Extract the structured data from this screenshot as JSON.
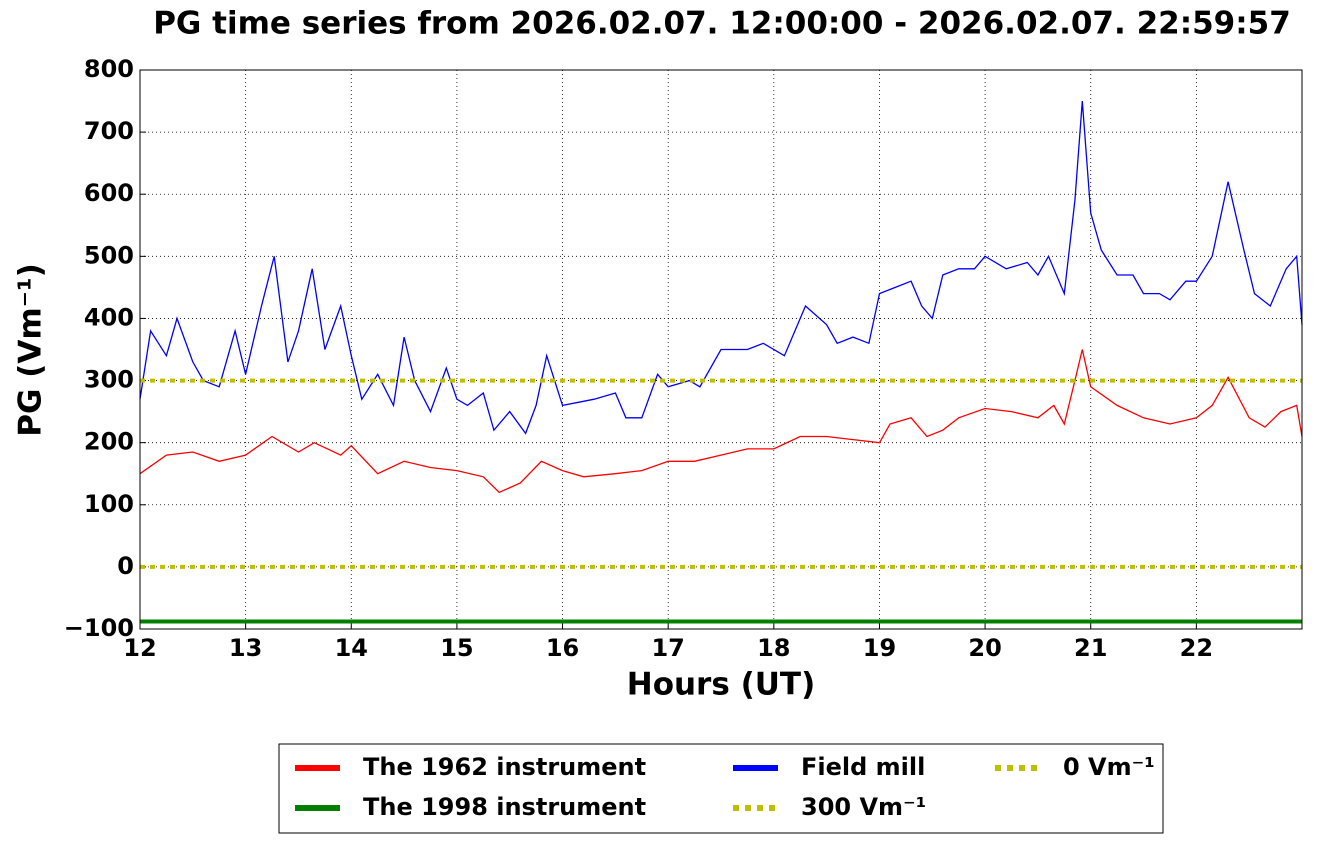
{
  "chart_data": {
    "type": "line",
    "title": "PG time series from 2026.02.07. 12:00:00 - 2026.02.07. 22:59:57",
    "x_label": "Hours (UT)",
    "y_label": "PG (Vm⁻¹)",
    "xlim": [
      12,
      23
    ],
    "ylim": [
      -100,
      800
    ],
    "xticks": [
      12,
      13,
      14,
      15,
      16,
      17,
      18,
      19,
      20,
      21,
      22
    ],
    "yticks": [
      {
        "value": -100,
        "label": "−100"
      },
      0,
      100,
      200,
      300,
      400,
      500,
      600,
      700,
      800
    ],
    "grid": true,
    "legend": "below",
    "series": [
      {
        "name": "The 1962 instrument",
        "color": "#ff0000",
        "linestyle": "solid",
        "x": [
          12.0,
          12.25,
          12.5,
          12.75,
          13.0,
          13.25,
          13.5,
          13.65,
          13.9,
          14.0,
          14.25,
          14.5,
          14.75,
          15.0,
          15.25,
          15.4,
          15.6,
          15.8,
          16.0,
          16.2,
          16.5,
          16.75,
          17.0,
          17.25,
          17.5,
          17.75,
          18.0,
          18.25,
          18.5,
          18.75,
          19.0,
          19.1,
          19.3,
          19.45,
          19.6,
          19.75,
          20.0,
          20.25,
          20.5,
          20.65,
          20.75,
          20.85,
          20.92,
          21.0,
          21.25,
          21.5,
          21.75,
          22.0,
          22.15,
          22.3,
          22.5,
          22.65,
          22.8,
          22.95,
          23.0
        ],
        "values": [
          150,
          180,
          185,
          170,
          180,
          210,
          185,
          200,
          180,
          195,
          150,
          170,
          160,
          155,
          145,
          120,
          135,
          170,
          155,
          145,
          150,
          155,
          170,
          170,
          180,
          190,
          190,
          210,
          210,
          205,
          200,
          230,
          240,
          210,
          220,
          240,
          255,
          250,
          240,
          260,
          230,
          300,
          350,
          290,
          260,
          240,
          230,
          240,
          260,
          305,
          240,
          225,
          250,
          260,
          210
        ]
      },
      {
        "name": "The 1998 instrument",
        "color": "#008000",
        "linestyle": "solid",
        "x": [
          12,
          23
        ],
        "values": [
          -88,
          -88
        ]
      },
      {
        "name": "Field mill",
        "color": "#0000ff",
        "linestyle": "solid",
        "x": [
          12.0,
          12.1,
          12.25,
          12.35,
          12.5,
          12.6,
          12.75,
          12.9,
          13.0,
          13.15,
          13.27,
          13.4,
          13.5,
          13.63,
          13.75,
          13.9,
          14.0,
          14.1,
          14.25,
          14.4,
          14.5,
          14.6,
          14.75,
          14.9,
          15.0,
          15.1,
          15.25,
          15.35,
          15.5,
          15.65,
          15.75,
          15.85,
          16.0,
          16.15,
          16.3,
          16.5,
          16.6,
          16.75,
          16.9,
          17.0,
          17.2,
          17.3,
          17.5,
          17.75,
          17.9,
          18.1,
          18.3,
          18.5,
          18.6,
          18.75,
          18.9,
          19.0,
          19.15,
          19.3,
          19.4,
          19.5,
          19.6,
          19.75,
          19.9,
          20.0,
          20.2,
          20.4,
          20.5,
          20.6,
          20.75,
          20.85,
          20.92,
          21.0,
          21.1,
          21.25,
          21.4,
          21.5,
          21.65,
          21.75,
          21.9,
          22.0,
          22.15,
          22.3,
          22.45,
          22.55,
          22.7,
          22.85,
          22.95,
          23.0
        ],
        "values": [
          270,
          380,
          340,
          400,
          330,
          300,
          290,
          380,
          310,
          420,
          500,
          330,
          380,
          480,
          350,
          420,
          340,
          270,
          310,
          260,
          370,
          300,
          250,
          320,
          270,
          260,
          280,
          220,
          250,
          215,
          260,
          340,
          260,
          265,
          270,
          280,
          240,
          240,
          310,
          290,
          300,
          290,
          350,
          350,
          360,
          340,
          420,
          390,
          360,
          370,
          360,
          440,
          450,
          460,
          420,
          400,
          470,
          480,
          480,
          500,
          480,
          490,
          470,
          500,
          440,
          590,
          750,
          570,
          510,
          470,
          470,
          440,
          440,
          430,
          460,
          460,
          500,
          620,
          510,
          440,
          420,
          480,
          500,
          390
        ]
      },
      {
        "name": "300 Vm⁻¹",
        "color": "#bfbf00",
        "linestyle": "dotted",
        "x": [
          12,
          23
        ],
        "values": [
          300,
          300
        ]
      },
      {
        "name": "0 Vm⁻¹",
        "color": "#bfbf00",
        "linestyle": "dotted",
        "x": [
          12,
          23
        ],
        "values": [
          0,
          0
        ]
      }
    ]
  }
}
